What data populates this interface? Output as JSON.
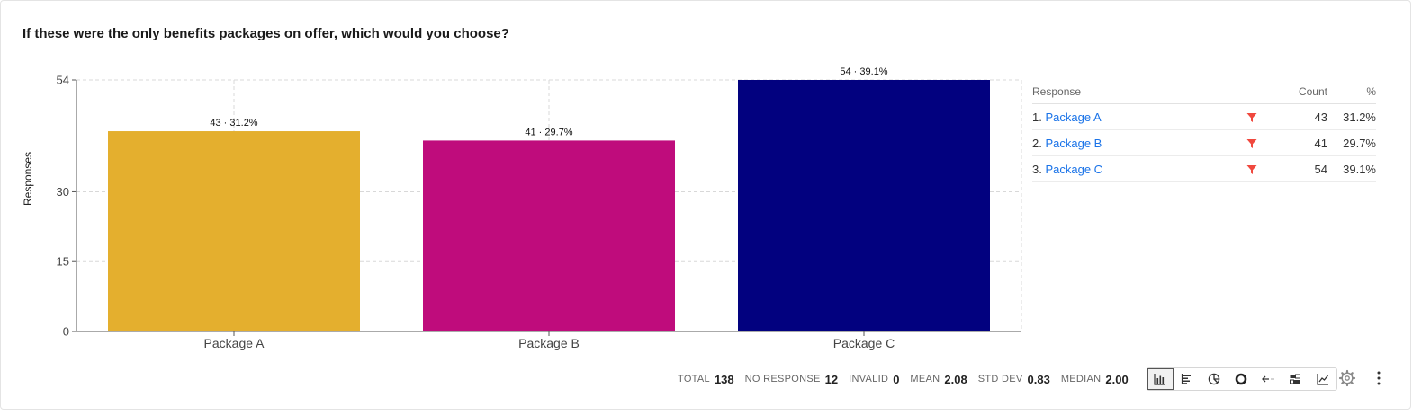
{
  "title": "If these were the only benefits packages on offer, which would you choose?",
  "chart_data": {
    "type": "bar",
    "categories": [
      "Package A",
      "Package B",
      "Package C"
    ],
    "values": [
      43,
      41,
      54
    ],
    "data_labels": [
      "43 · 31.2%",
      "41 · 29.7%",
      "54 · 39.1%"
    ],
    "colors": [
      "#e4af2e",
      "#bf0c7c",
      "#02017f"
    ],
    "ylabel": "Responses",
    "xlabel": "",
    "ylim": [
      0,
      54
    ],
    "yticks": [
      0,
      15,
      30,
      54
    ],
    "grid": true
  },
  "table": {
    "headers": {
      "response": "Response",
      "count": "Count",
      "pct": "%"
    },
    "rows": [
      {
        "index": "1.",
        "label": "Package A",
        "count": "43",
        "pct": "31.2%"
      },
      {
        "index": "2.",
        "label": "Package B",
        "count": "41",
        "pct": "29.7%"
      },
      {
        "index": "3.",
        "label": "Package C",
        "count": "54",
        "pct": "39.1%"
      }
    ],
    "filter_color": "#f0483e"
  },
  "stats": [
    {
      "label": "TOTAL",
      "value": "138"
    },
    {
      "label": "NO RESPONSE",
      "value": "12"
    },
    {
      "label": "INVALID",
      "value": "0"
    },
    {
      "label": "MEAN",
      "value": "2.08"
    },
    {
      "label": "STD DEV",
      "value": "0.83"
    },
    {
      "label": "MEDIAN",
      "value": "2.00"
    }
  ],
  "toolbar": [
    {
      "icon": "bar-chart-icon",
      "active": true
    },
    {
      "icon": "horizontal-bar-icon",
      "active": false
    },
    {
      "icon": "pie-chart-icon",
      "active": false
    },
    {
      "icon": "donut-chart-icon",
      "active": false
    },
    {
      "icon": "arrow-left-icon",
      "active": false
    },
    {
      "icon": "stacked-bar-icon",
      "active": false
    },
    {
      "icon": "line-chart-icon",
      "active": false
    }
  ]
}
